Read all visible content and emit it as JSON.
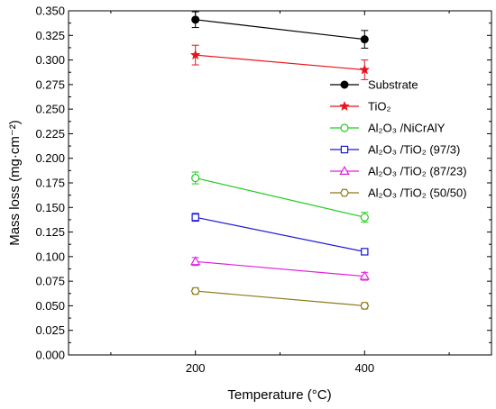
{
  "chart_data": {
    "type": "line",
    "xlabel": "Temperature (°C)",
    "ylabel": "Mass loss (mg·cm⁻²)",
    "x": [
      200,
      400
    ],
    "x_ticks": [
      "200",
      "400"
    ],
    "xlim": [
      50,
      550
    ],
    "ylim": [
      0,
      0.35
    ],
    "y_ticks": [
      "0.000",
      "0.025",
      "0.050",
      "0.075",
      "0.100",
      "0.125",
      "0.150",
      "0.175",
      "0.200",
      "0.225",
      "0.250",
      "0.275",
      "0.300",
      "0.325",
      "0.350"
    ],
    "grid": false,
    "legend_position": "right",
    "series": [
      {
        "name": "Substrate",
        "color": "#000000",
        "marker": "filled-circle",
        "values": [
          0.341,
          0.321
        ],
        "errors": [
          0.008,
          0.009
        ]
      },
      {
        "name": "TiO₂",
        "color": "#e8141c",
        "marker": "filled-star",
        "values": [
          0.305,
          0.29
        ],
        "errors": [
          0.01,
          0.01
        ]
      },
      {
        "name": "Al₂O₃ /NiCrAlY",
        "color": "#22cc22",
        "marker": "open-circle",
        "values": [
          0.18,
          0.14
        ],
        "errors": [
          0.006,
          0.005
        ]
      },
      {
        "name": "Al₂O₃ /TiO₂ (97/3)",
        "color": "#1a1ad6",
        "marker": "open-square",
        "values": [
          0.14,
          0.105
        ],
        "errors": [
          0.004,
          0.003
        ]
      },
      {
        "name": "Al₂O₃ /TiO₂ (87/23)",
        "color": "#e020e0",
        "marker": "open-triangle",
        "values": [
          0.095,
          0.08
        ],
        "errors": [
          0.004,
          0.004
        ]
      },
      {
        "name": "Al₂O₃ /TiO₂ (50/50)",
        "color": "#8c7a1a",
        "marker": "open-hexagon",
        "values": [
          0.065,
          0.05
        ],
        "errors": [
          0.003,
          0.003
        ]
      }
    ]
  }
}
